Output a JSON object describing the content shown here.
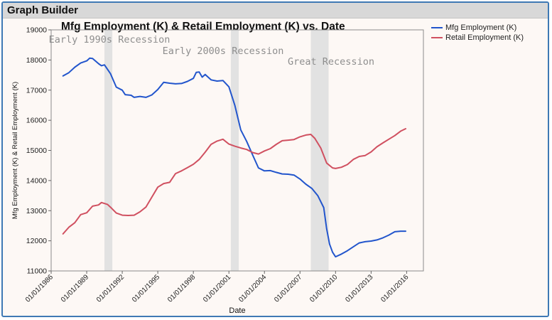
{
  "window": {
    "title": "Graph Builder"
  },
  "chart_data": {
    "type": "line",
    "title": "Mfg Employment (K) & Retail Employment (K) vs. Date",
    "xlabel": "Date",
    "ylabel": "Mfg Employment (K) & Retail Employment (K)",
    "ylim": [
      11000,
      19000
    ],
    "yticks": [
      11000,
      12000,
      13000,
      14000,
      15000,
      16000,
      17000,
      18000,
      19000
    ],
    "xlim": [
      "1986-01-01",
      "2017-06-01"
    ],
    "xticks": [
      "01/01/1986",
      "01/01/1989",
      "01/01/1992",
      "01/01/1995",
      "01/01/1998",
      "01/01/2001",
      "01/01/2004",
      "01/01/2007",
      "01/01/2010",
      "01/01/2013",
      "01/01/2016"
    ],
    "grid": false,
    "legend": "top-right",
    "recessions": [
      {
        "label": "Early 1990s Recession",
        "start": "1990-07-01",
        "end": "1991-03-01"
      },
      {
        "label": "Early 2000s Recession",
        "start": "2001-03-01",
        "end": "2001-11-01"
      },
      {
        "label": "Great Recession",
        "start": "2007-12-01",
        "end": "2009-06-01"
      }
    ],
    "series": [
      {
        "name": "Mfg Employment (K)",
        "color": "#2255cc",
        "points": [
          [
            "1987-01-01",
            17470
          ],
          [
            "1987-07-01",
            17580
          ],
          [
            "1988-01-01",
            17760
          ],
          [
            "1988-07-01",
            17900
          ],
          [
            "1989-01-01",
            17970
          ],
          [
            "1989-04-01",
            18060
          ],
          [
            "1989-07-01",
            18050
          ],
          [
            "1990-01-01",
            17880
          ],
          [
            "1990-04-01",
            17810
          ],
          [
            "1990-07-01",
            17840
          ],
          [
            "1991-01-01",
            17550
          ],
          [
            "1991-07-01",
            17100
          ],
          [
            "1992-01-01",
            17000
          ],
          [
            "1992-04-01",
            16850
          ],
          [
            "1992-10-01",
            16830
          ],
          [
            "1993-01-01",
            16760
          ],
          [
            "1993-07-01",
            16790
          ],
          [
            "1994-01-01",
            16760
          ],
          [
            "1994-07-01",
            16840
          ],
          [
            "1995-01-01",
            17020
          ],
          [
            "1995-07-01",
            17260
          ],
          [
            "1996-01-01",
            17230
          ],
          [
            "1996-07-01",
            17210
          ],
          [
            "1997-01-01",
            17220
          ],
          [
            "1997-07-01",
            17290
          ],
          [
            "1998-01-01",
            17390
          ],
          [
            "1998-04-01",
            17590
          ],
          [
            "1998-07-01",
            17600
          ],
          [
            "1998-10-01",
            17430
          ],
          [
            "1999-01-01",
            17520
          ],
          [
            "1999-07-01",
            17340
          ],
          [
            "2000-01-01",
            17300
          ],
          [
            "2000-07-01",
            17320
          ],
          [
            "2001-01-01",
            17110
          ],
          [
            "2001-07-01",
            16500
          ],
          [
            "2002-01-01",
            15680
          ],
          [
            "2002-07-01",
            15300
          ],
          [
            "2003-01-01",
            14850
          ],
          [
            "2003-07-01",
            14420
          ],
          [
            "2004-01-01",
            14320
          ],
          [
            "2004-07-01",
            14330
          ],
          [
            "2005-01-01",
            14270
          ],
          [
            "2005-07-01",
            14220
          ],
          [
            "2006-01-01",
            14210
          ],
          [
            "2006-07-01",
            14180
          ],
          [
            "2007-01-01",
            14050
          ],
          [
            "2007-07-01",
            13880
          ],
          [
            "2008-01-01",
            13740
          ],
          [
            "2008-07-01",
            13500
          ],
          [
            "2009-01-01",
            13100
          ],
          [
            "2009-04-01",
            12400
          ],
          [
            "2009-07-01",
            11890
          ],
          [
            "2009-10-01",
            11620
          ],
          [
            "2010-01-01",
            11470
          ],
          [
            "2010-07-01",
            11560
          ],
          [
            "2011-01-01",
            11670
          ],
          [
            "2011-07-01",
            11800
          ],
          [
            "2012-01-01",
            11930
          ],
          [
            "2012-07-01",
            11970
          ],
          [
            "2013-01-01",
            11990
          ],
          [
            "2013-07-01",
            12030
          ],
          [
            "2014-01-01",
            12100
          ],
          [
            "2014-07-01",
            12190
          ],
          [
            "2015-01-01",
            12300
          ],
          [
            "2015-07-01",
            12320
          ],
          [
            "2015-12-01",
            12320
          ]
        ]
      },
      {
        "name": "Retail Employment (K)",
        "color": "#d05060",
        "points": [
          [
            "1987-01-01",
            12230
          ],
          [
            "1987-07-01",
            12450
          ],
          [
            "1988-01-01",
            12600
          ],
          [
            "1988-07-01",
            12870
          ],
          [
            "1989-01-01",
            12930
          ],
          [
            "1989-07-01",
            13150
          ],
          [
            "1990-01-01",
            13190
          ],
          [
            "1990-04-01",
            13270
          ],
          [
            "1990-10-01",
            13210
          ],
          [
            "1991-01-01",
            13120
          ],
          [
            "1991-07-01",
            12920
          ],
          [
            "1992-01-01",
            12850
          ],
          [
            "1992-07-01",
            12840
          ],
          [
            "1993-01-01",
            12850
          ],
          [
            "1993-07-01",
            12960
          ],
          [
            "1994-01-01",
            13120
          ],
          [
            "1994-07-01",
            13450
          ],
          [
            "1995-01-01",
            13780
          ],
          [
            "1995-07-01",
            13900
          ],
          [
            "1996-01-01",
            13940
          ],
          [
            "1996-07-01",
            14230
          ],
          [
            "1997-01-01",
            14320
          ],
          [
            "1997-07-01",
            14430
          ],
          [
            "1998-01-01",
            14540
          ],
          [
            "1998-07-01",
            14700
          ],
          [
            "1999-01-01",
            14940
          ],
          [
            "1999-07-01",
            15200
          ],
          [
            "2000-01-01",
            15310
          ],
          [
            "2000-07-01",
            15370
          ],
          [
            "2001-01-01",
            15210
          ],
          [
            "2001-07-01",
            15140
          ],
          [
            "2002-01-01",
            15080
          ],
          [
            "2002-07-01",
            15030
          ],
          [
            "2003-01-01",
            14930
          ],
          [
            "2003-07-01",
            14880
          ],
          [
            "2004-01-01",
            14980
          ],
          [
            "2004-07-01",
            15060
          ],
          [
            "2005-01-01",
            15200
          ],
          [
            "2005-07-01",
            15320
          ],
          [
            "2006-01-01",
            15340
          ],
          [
            "2006-07-01",
            15360
          ],
          [
            "2007-01-01",
            15450
          ],
          [
            "2007-07-01",
            15510
          ],
          [
            "2007-12-01",
            15530
          ],
          [
            "2008-04-01",
            15400
          ],
          [
            "2008-10-01",
            15080
          ],
          [
            "2009-04-01",
            14580
          ],
          [
            "2009-10-01",
            14420
          ],
          [
            "2010-01-01",
            14400
          ],
          [
            "2010-07-01",
            14440
          ],
          [
            "2011-01-01",
            14530
          ],
          [
            "2011-07-01",
            14700
          ],
          [
            "2012-01-01",
            14800
          ],
          [
            "2012-07-01",
            14830
          ],
          [
            "2013-01-01",
            14950
          ],
          [
            "2013-07-01",
            15120
          ],
          [
            "2014-01-01",
            15250
          ],
          [
            "2014-07-01",
            15370
          ],
          [
            "2015-01-01",
            15490
          ],
          [
            "2015-07-01",
            15640
          ],
          [
            "2015-12-01",
            15720
          ]
        ]
      }
    ]
  }
}
